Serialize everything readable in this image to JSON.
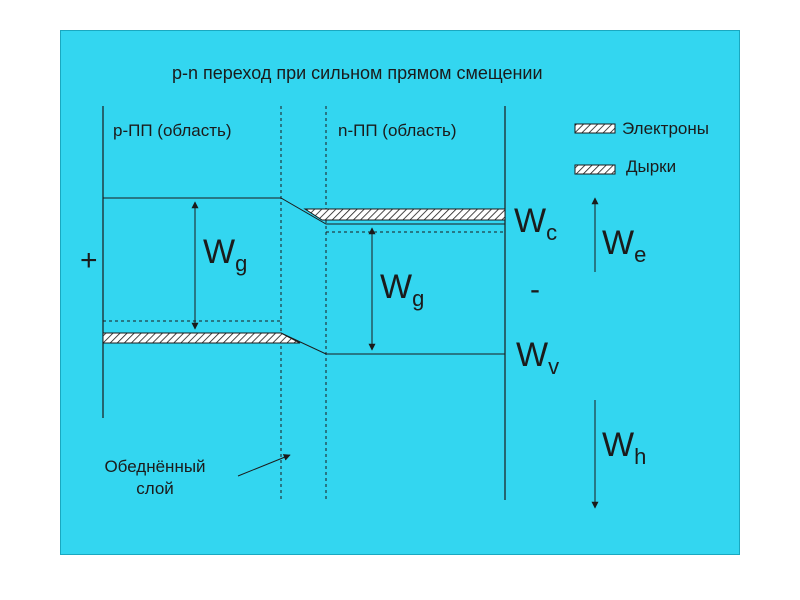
{
  "title": "p-n переход при   сильном прямом смещении",
  "regions": {
    "p": "р-ПП (область)",
    "n": "n-ПП (область)"
  },
  "legend": {
    "electrons": "Электроны",
    "holes": "Дырки"
  },
  "band_labels": {
    "wg_main": "W",
    "wg_sub": "g",
    "wc_main": "W",
    "wc_sub": "c",
    "wv_main": "W",
    "wv_sub": "v",
    "we_main": "W",
    "we_sub": "e",
    "wh_main": "W",
    "wh_sub": "h"
  },
  "signs": {
    "plus": "+",
    "minus": "-"
  },
  "depletion_note": {
    "line1": "Обеднённый",
    "line2": "слой"
  },
  "colors": {
    "background": "#33d6f0",
    "lines": "#1b1b1b",
    "hatch": "#1b1b1b"
  }
}
